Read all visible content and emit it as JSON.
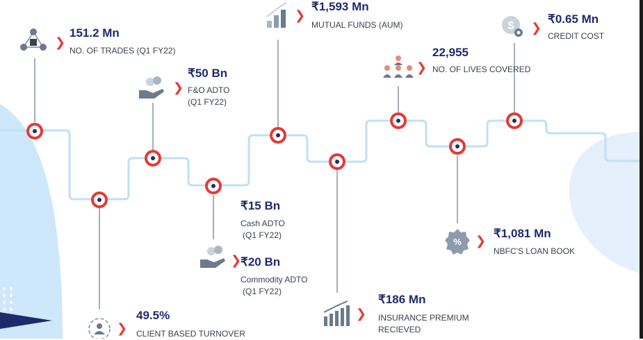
{
  "colors": {
    "accent": "#e53935",
    "navy": "#1f2a6b",
    "path_line": "#bfe0f6",
    "blob": "#cfe7fb",
    "stem": "#6b7a8c"
  },
  "metrics": {
    "trades": {
      "value": "151.2 Mn",
      "label": "NO. OF TRADES (Q1 FY22)"
    },
    "fo": {
      "value": "₹50 Bn",
      "label1": "F&O ADTO",
      "label2": "(Q1 FY22)"
    },
    "mf": {
      "value": "₹1,593 Mn",
      "label": "MUTUAL FUNDS (AUM)"
    },
    "lives": {
      "value": "22,955",
      "label": "NO. OF LIVES COVERED"
    },
    "credit": {
      "value": "₹0.65 Mn",
      "label": "CREDIT COST"
    },
    "cash": {
      "value": "₹15 Bn",
      "label1": "Cash ADTO",
      "label2": "(Q1 FY22)"
    },
    "commodity": {
      "value": "₹20 Bn",
      "label1": "Commodity ADTO",
      "label2": "(Q1 FY22)"
    },
    "client": {
      "value": "49.5%",
      "label": "CLIENT BASED TURNOVER"
    },
    "insurance": {
      "value": "₹186 Mn",
      "label1": "INSURANCE PREMIUM",
      "label2": "RECIEVED"
    },
    "nbfc": {
      "value": "₹1,081 Mn",
      "label": "NBFC'S LOAN BOOK"
    }
  },
  "icons": {
    "trades": "network-nodes-icon",
    "fo": "hand-coins-icon",
    "mf": "rising-bars-icon",
    "lives": "people-group-icon",
    "credit": "dollar-coin-gear-icon",
    "commodity": "hand-coins-icon",
    "client": "target-person-icon",
    "insurance": "bar-chart-arrow-icon",
    "nbfc": "percent-badge-icon"
  }
}
